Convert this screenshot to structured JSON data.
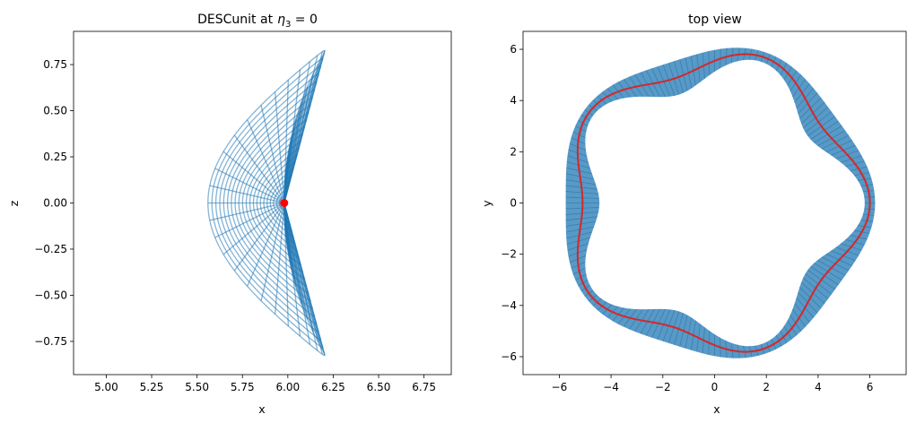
{
  "figure": {
    "background": "#ffffff"
  },
  "chart_data": [
    {
      "type": "line",
      "title": "DESCunit at",
      "title_math": {
        "symbol": "η",
        "subscript": "3",
        "rest": " = 0"
      },
      "xlabel": "x",
      "ylabel": "z",
      "xlim": [
        4.82,
        6.9
      ],
      "ylim": [
        -0.93,
        0.93
      ],
      "xticks": [
        5.0,
        5.25,
        5.5,
        5.75,
        6.0,
        6.25,
        6.5,
        6.75
      ],
      "xtick_labels": [
        "5.00",
        "5.25",
        "5.50",
        "5.75",
        "6.00",
        "6.25",
        "6.50",
        "6.75"
      ],
      "yticks": [
        0.75,
        0.5,
        0.25,
        0.0,
        -0.25,
        -0.5,
        -0.75
      ],
      "ytick_labels": [
        "0.75",
        "0.50",
        "0.25",
        "0.00",
        "−0.25",
        "−0.50",
        "−0.75"
      ],
      "grid": false,
      "series": [
        {
          "kind": "flux-surfaces",
          "color": "#1f77b4",
          "opacity": 0.55,
          "count": 22
        },
        {
          "kind": "poloidal-rays",
          "color": "#1f77b4",
          "opacity": 0.55,
          "count": 48
        },
        {
          "kind": "magnetic-axis",
          "color": "#ff0000",
          "x": 5.98,
          "y": 0.0
        }
      ]
    },
    {
      "type": "line",
      "title": "top view",
      "xlabel": "x",
      "ylabel": "y",
      "xlim": [
        -7.4,
        7.4
      ],
      "ylim": [
        -6.7,
        6.7
      ],
      "xticks": [
        -6,
        -4,
        -2,
        0,
        2,
        4,
        6
      ],
      "xtick_labels": [
        "−6",
        "−4",
        "−2",
        "0",
        "2",
        "4",
        "6"
      ],
      "yticks": [
        6,
        4,
        2,
        0,
        -2,
        -4,
        -6
      ],
      "ytick_labels": [
        "6",
        "4",
        "2",
        "0",
        "−2",
        "−4",
        "−6"
      ],
      "grid": false,
      "series": [
        {
          "kind": "boundary-band",
          "color": "#1f77b4",
          "opacity": 0.55,
          "field_periods": 5
        },
        {
          "kind": "magnetic-axis",
          "color": "#d62728",
          "field_periods": 5
        }
      ]
    }
  ]
}
